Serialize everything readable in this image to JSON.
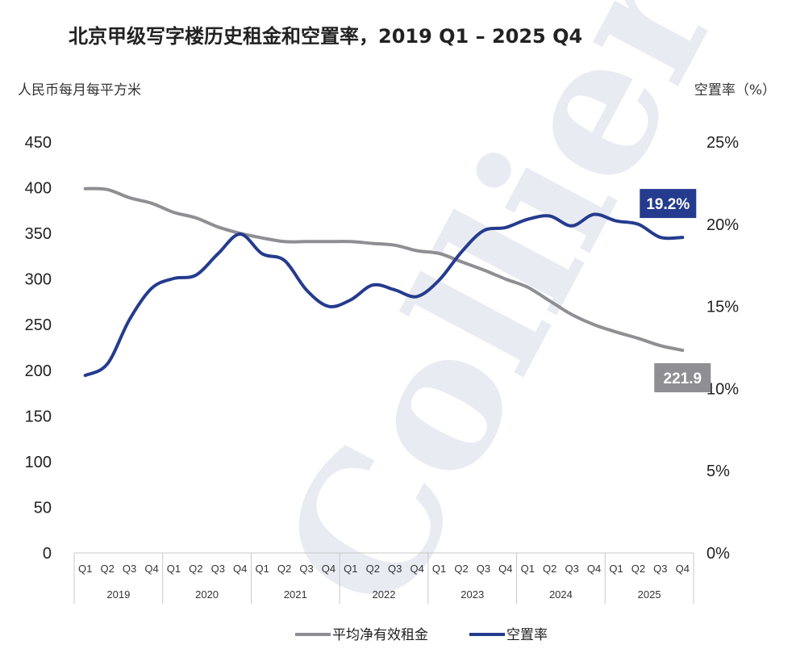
{
  "chart_data": {
    "type": "line",
    "title": "北京甲级写字楼历史租金和空置率，2019 Q1 – 2025 Q4",
    "left_axis_label": "人民币每月每平方米",
    "right_axis_label": "空置率（%）",
    "watermark": "Colliers",
    "quarters": [
      "Q1",
      "Q2",
      "Q3",
      "Q4"
    ],
    "years": [
      "2019",
      "2020",
      "2021",
      "2022",
      "2023",
      "2024",
      "2025"
    ],
    "left_ylim": [
      0,
      450
    ],
    "left_ticks": [
      "0",
      "50",
      "100",
      "150",
      "200",
      "250",
      "300",
      "350",
      "400",
      "450"
    ],
    "right_ylim": [
      0,
      25
    ],
    "right_ticks": [
      "0%",
      "5%",
      "10%",
      "15%",
      "20%",
      "25%"
    ],
    "series": [
      {
        "name": "平均净有效租金",
        "axis": "left",
        "color": "#8e8e93",
        "values": [
          399,
          398,
          389,
          383,
          373,
          367,
          357,
          350,
          345,
          341,
          341,
          341,
          341,
          339,
          337,
          331,
          328,
          319,
          310,
          300,
          291,
          276,
          261,
          250,
          242,
          235,
          227,
          221.9
        ],
        "end_label": "221.9"
      },
      {
        "name": "空置率",
        "axis": "right",
        "color": "#253b8e",
        "values": [
          10.8,
          11.5,
          14.2,
          16.1,
          16.7,
          16.9,
          18.2,
          19.4,
          18.2,
          17.8,
          16.0,
          15.0,
          15.4,
          16.3,
          16.0,
          15.6,
          16.6,
          18.3,
          19.6,
          19.8,
          20.3,
          20.5,
          19.9,
          20.6,
          20.2,
          20.0,
          19.2,
          19.2
        ],
        "end_label": "19.2%"
      }
    ],
    "legend_position": "bottom",
    "grid": false
  }
}
